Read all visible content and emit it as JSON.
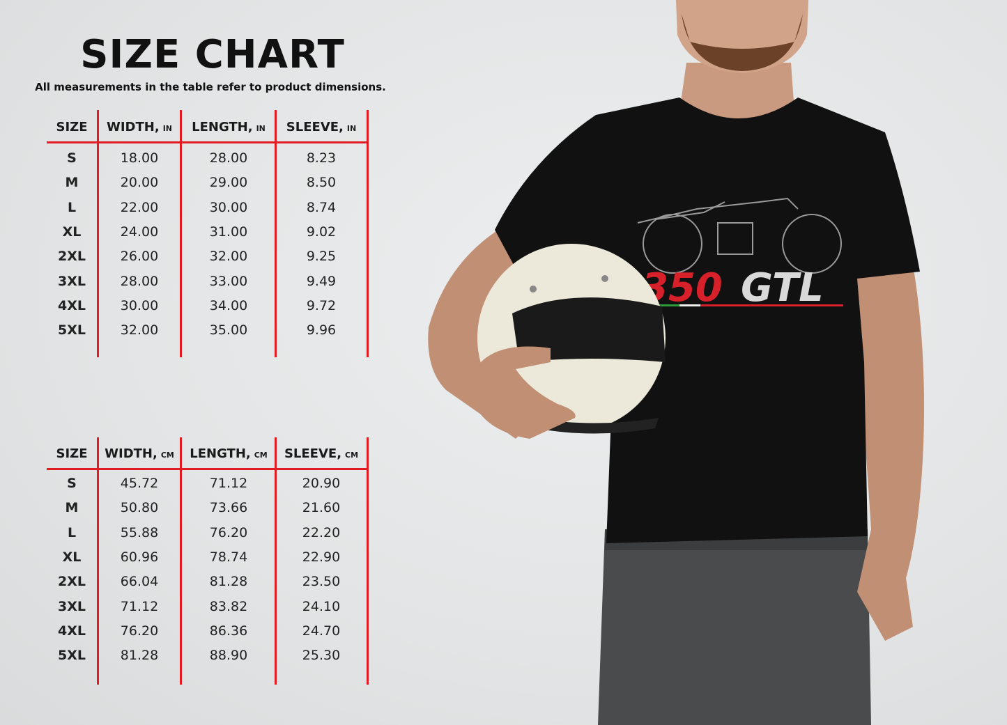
{
  "header": {
    "title": "SIZE CHART",
    "subtitle": "All measurements in the table refer to product dimensions."
  },
  "accent_color": "#e01b22",
  "tables": [
    {
      "columns": [
        {
          "label": "SIZE",
          "unit": ""
        },
        {
          "label": "WIDTH,",
          "unit": "IN"
        },
        {
          "label": "LENGTH,",
          "unit": "IN"
        },
        {
          "label": "SLEEVE,",
          "unit": "IN"
        }
      ],
      "rows": [
        [
          "S",
          "18.00",
          "28.00",
          "8.23"
        ],
        [
          "M",
          "20.00",
          "29.00",
          "8.50"
        ],
        [
          "L",
          "22.00",
          "30.00",
          "8.74"
        ],
        [
          "XL",
          "24.00",
          "31.00",
          "9.02"
        ],
        [
          "2XL",
          "26.00",
          "32.00",
          "9.25"
        ],
        [
          "3XL",
          "28.00",
          "33.00",
          "9.49"
        ],
        [
          "4XL",
          "30.00",
          "34.00",
          "9.72"
        ],
        [
          "5XL",
          "32.00",
          "35.00",
          "9.96"
        ]
      ]
    },
    {
      "columns": [
        {
          "label": "SIZE",
          "unit": ""
        },
        {
          "label": "WIDTH,",
          "unit": "CM"
        },
        {
          "label": "LENGTH,",
          "unit": "CM"
        },
        {
          "label": "SLEEVE,",
          "unit": "CM"
        }
      ],
      "rows": [
        [
          "S",
          "45.72",
          "71.12",
          "20.90"
        ],
        [
          "M",
          "50.80",
          "73.66",
          "21.60"
        ],
        [
          "L",
          "55.88",
          "76.20",
          "22.20"
        ],
        [
          "XL",
          "60.96",
          "78.74",
          "22.90"
        ],
        [
          "2XL",
          "66.04",
          "81.28",
          "23.50"
        ],
        [
          "3XL",
          "71.12",
          "83.82",
          "24.10"
        ],
        [
          "4XL",
          "76.20",
          "86.36",
          "24.70"
        ],
        [
          "5XL",
          "81.28",
          "88.90",
          "25.30"
        ]
      ]
    }
  ],
  "product_photo": {
    "shirt_graphic_text": "350GTL",
    "shirt_color": "#111111",
    "helmet_color": "#ece9da"
  }
}
